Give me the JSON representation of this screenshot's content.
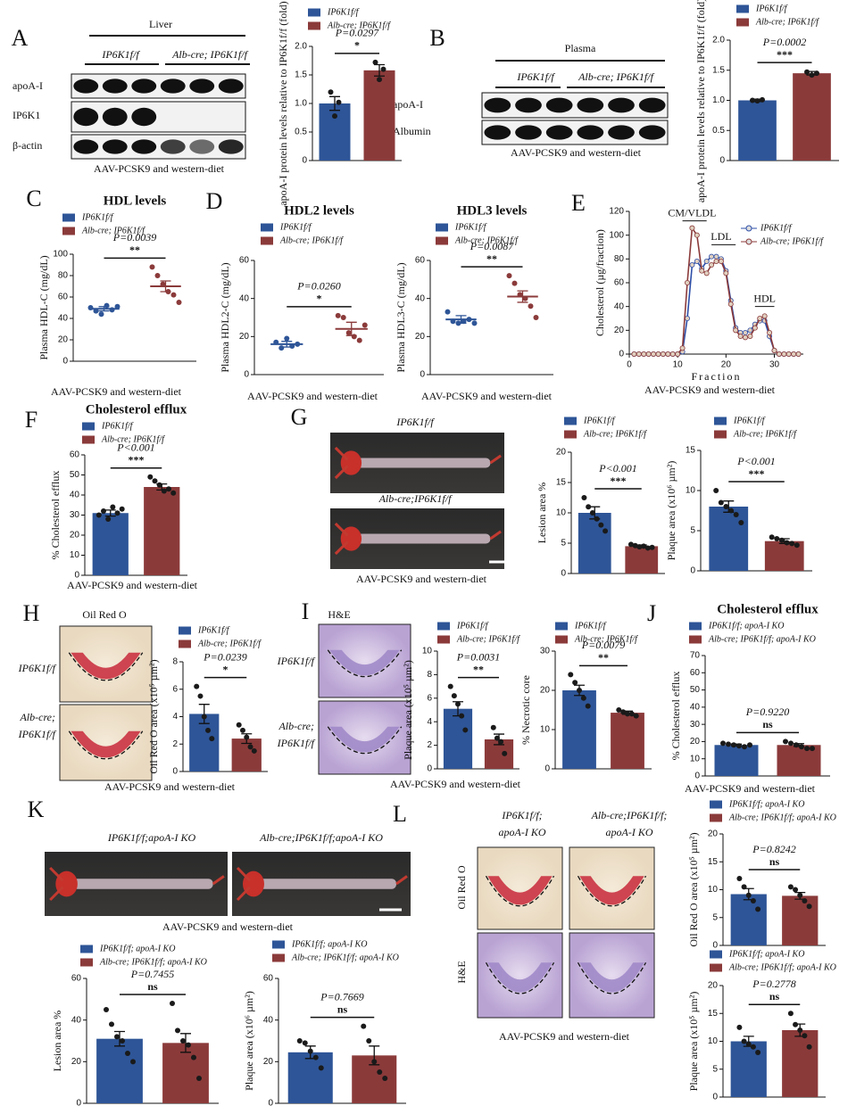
{
  "panels": [
    {
      "letter": "A",
      "header": "Liver",
      "groups": [
        "IP6K1f/f",
        "Alb-cre; IP6K1f/f"
      ],
      "rows": [
        "apoA-I",
        "IP6K1",
        "β-actin"
      ],
      "captions": [
        "AAV-PCSK9 and western-diet"
      ]
    },
    {
      "letter": "B",
      "header": "Plasma",
      "groups": [
        "IP6K1f/f",
        "Alb-cre; IP6K1f/f"
      ],
      "rows": [
        "apoA-I",
        "Albumin"
      ],
      "captions": [
        "AAV-PCSK9 and western-diet"
      ]
    },
    {
      "letter": "C",
      "captions": [
        "AAV-PCSK9 and western-diet"
      ]
    },
    {
      "letter": "D",
      "captions": [
        "AAV-PCSK9 and western-diet",
        "AAV-PCSK9 and western-diet"
      ]
    },
    {
      "letter": "E",
      "captions": [
        "AAV-PCSK9 and western-diet"
      ]
    },
    {
      "letter": "F",
      "captions": [
        "AAV-PCSK9 and western-diet"
      ]
    },
    {
      "letter": "G",
      "labels": [
        [
          "IP6K1f/f"
        ],
        [
          "Alb-cre;IP6K1f/f"
        ]
      ],
      "captions": [
        "AAV-PCSK9 and western-diet"
      ]
    },
    {
      "letter": "H",
      "header": "Oil Red O",
      "labels": [
        [
          "IP6K1f/f"
        ],
        [
          "Alb-cre;",
          "IP6K1f/f"
        ]
      ],
      "captions": [
        "AAV-PCSK9 and western-diet"
      ]
    },
    {
      "letter": "I",
      "header": "H&E",
      "labels": [
        [
          "IP6K1f/f"
        ],
        [
          "Alb-cre;",
          "IP6K1f/f"
        ]
      ],
      "captions": [
        "AAV-PCSK9 and western-diet"
      ]
    },
    {
      "letter": "J",
      "captions": [
        "AAV-PCSK9 and western-diet"
      ]
    },
    {
      "letter": "K",
      "labels": [
        [
          "IP6K1f/f;apoA-I KO"
        ],
        [
          "Alb-cre;IP6K1f/f;apoA-I KO"
        ]
      ],
      "captions": [
        "AAV-PCSK9 and western-diet"
      ]
    },
    {
      "letter": "L",
      "labels": [
        [
          "IP6K1f/f;",
          "apoA-I KO"
        ],
        [
          "Alb-cre;IP6K1f/f;",
          "apoA-I KO"
        ]
      ],
      "rows": [
        "Oil Red O",
        "H&E"
      ],
      "captions": [
        "AAV-PCSK9 and western-diet"
      ]
    }
  ],
  "chart_data": [
    {
      "type": "bar",
      "ylabel": "apoA-I protein levels relative to IP6K1f/f (fold)",
      "ylim": [
        0,
        2
      ],
      "yticks": [
        0,
        0.5,
        {
          "value": 1,
          "label": "1.0"
        },
        1.5,
        {
          "value": 2,
          "label": "2.0"
        }
      ],
      "p_label": "P=0.0297",
      "significance": "*",
      "series": [
        {
          "name": "IP6K1f/f",
          "color": "#2e5597",
          "values": [
            1.0
          ],
          "errors": [
            0.12
          ],
          "points": [
            1.2,
            0.78,
            1.02
          ]
        },
        {
          "name": "Alb-cre; IP6K1f/f",
          "color": "#8b3a3a",
          "values": [
            1.58
          ],
          "errors": [
            0.1
          ],
          "points": [
            1.72,
            1.42,
            1.6
          ]
        }
      ]
    },
    {
      "type": "bar",
      "ylabel": "apoA-I protein levels relative to IP6K1f/f (fold)",
      "ylim": [
        0,
        2
      ],
      "yticks": [
        0,
        0.5,
        {
          "value": 1,
          "label": "1.0"
        },
        1.5,
        {
          "value": 2,
          "label": "2.0"
        }
      ],
      "p_label": "P=0.0002",
      "significance": "***",
      "series": [
        {
          "name": "IP6K1f/f",
          "color": "#2e5597",
          "values": [
            1.0
          ],
          "errors": [
            0.02
          ],
          "points": [
            1.0,
            0.99,
            1.01
          ]
        },
        {
          "name": "Alb-cre; IP6K1f/f",
          "color": "#8b3a3a",
          "values": [
            1.45
          ],
          "errors": [
            0.03
          ],
          "points": [
            1.47,
            1.42,
            1.45
          ]
        }
      ]
    },
    {
      "type": "scatter",
      "title": "HDL levels",
      "ylabel": "Plasma HDL-C (mg/dL)",
      "ylim": [
        0,
        100
      ],
      "yticks": [
        0,
        20,
        40,
        60,
        80,
        100
      ],
      "p_label": "P=0.0039",
      "significance": "**",
      "series": [
        {
          "name": "IP6K1f/f",
          "color": "#2e5597",
          "values": [
            49
          ],
          "errors": [
            2
          ],
          "points": [
            50,
            47,
            44,
            52,
            48,
            51
          ]
        },
        {
          "name": "Alb-cre; IP6K1f/f",
          "color": "#8b3a3a",
          "values": [
            70
          ],
          "errors": [
            5
          ],
          "points": [
            88,
            80,
            72,
            65,
            62,
            55
          ]
        }
      ]
    },
    {
      "type": "scatter",
      "title": "HDL2 levels",
      "ylabel": "Plasma HDL2-C (mg/dL)",
      "ylim": [
        0,
        60
      ],
      "yticks": [
        0,
        20,
        40,
        60
      ],
      "p_label": "P=0.0260",
      "significance": "*",
      "series": [
        {
          "name": "IP6K1f/f",
          "color": "#2e5597",
          "values": [
            16
          ],
          "errors": [
            1.5
          ],
          "points": [
            17,
            14,
            19,
            15,
            16
          ]
        },
        {
          "name": "Alb-cre; IP6K1f/f",
          "color": "#8b3a3a",
          "values": [
            24
          ],
          "errors": [
            3.5
          ],
          "points": [
            31,
            30,
            22,
            20,
            18,
            26
          ]
        }
      ]
    },
    {
      "type": "scatter",
      "title": "HDL3 levels",
      "ylabel": "Plasma HDL3-C (mg/dL)",
      "ylim": [
        0,
        60
      ],
      "yticks": [
        0,
        20,
        40,
        60
      ],
      "p_label": "P=0.0087",
      "significance": "**",
      "series": [
        {
          "name": "IP6K1f/f",
          "color": "#2e5597",
          "values": [
            29
          ],
          "errors": [
            2
          ],
          "points": [
            33,
            28,
            27,
            28,
            29,
            27
          ]
        },
        {
          "name": "Alb-cre; IP6K1f/f",
          "color": "#8b3a3a",
          "values": [
            41
          ],
          "errors": [
            3
          ],
          "points": [
            52,
            48,
            42,
            40,
            36,
            30
          ]
        }
      ]
    },
    {
      "type": "line",
      "ylabel": "Cholesterol (µg/fraction)",
      "xlabel": "Fraction",
      "xlim": [
        0,
        36
      ],
      "xticks": [
        0,
        10,
        20,
        30
      ],
      "ylim": [
        0,
        120
      ],
      "yticks": [
        0,
        20,
        40,
        60,
        80,
        100,
        120
      ],
      "annotations": [
        "CM/VLDL",
        "LDL",
        "HDL"
      ],
      "x": [
        1,
        2,
        3,
        4,
        5,
        6,
        7,
        8,
        9,
        10,
        11,
        12,
        13,
        14,
        15,
        16,
        17,
        18,
        19,
        20,
        21,
        22,
        23,
        24,
        25,
        26,
        27,
        28,
        29,
        30,
        31,
        32,
        33,
        34,
        35
      ],
      "series": [
        {
          "name": "IP6K1f/f",
          "color": "#2e4fa8",
          "values": [
            0,
            0,
            0,
            0,
            0,
            0,
            0,
            0,
            0,
            0,
            2,
            30,
            75,
            78,
            72,
            78,
            82,
            82,
            80,
            70,
            45,
            22,
            18,
            18,
            20,
            25,
            28,
            28,
            15,
            3,
            0,
            0,
            0,
            0,
            0
          ]
        },
        {
          "name": "Alb-cre; IP6K1f/f",
          "color": "#8b3a3a",
          "values": [
            0,
            0,
            0,
            0,
            0,
            0,
            0,
            0,
            0,
            0,
            5,
            60,
            106,
            100,
            70,
            68,
            75,
            78,
            78,
            68,
            42,
            20,
            15,
            14,
            15,
            22,
            30,
            32,
            18,
            3,
            0,
            0,
            0,
            0,
            0
          ]
        }
      ]
    },
    {
      "type": "bar",
      "title": "Cholesterol efflux",
      "ylabel": "% Cholesterol efflux",
      "ylim": [
        0,
        60
      ],
      "yticks": [
        0,
        10,
        20,
        30,
        40,
        50,
        60
      ],
      "p_label": "P<0.001",
      "significance": "***",
      "series": [
        {
          "name": "IP6K1f/f",
          "color": "#2e5597",
          "values": [
            31
          ],
          "errors": [
            1.5
          ],
          "points": [
            30,
            32,
            28,
            34,
            31,
            33
          ]
        },
        {
          "name": "Alb-cre; IP6K1f/f",
          "color": "#8b3a3a",
          "values": [
            44
          ],
          "errors": [
            1.5
          ],
          "points": [
            49,
            47,
            45,
            42,
            43,
            41
          ]
        }
      ]
    },
    {
      "type": "bar",
      "ylabel": "Lesion area %",
      "ylim": [
        0,
        20
      ],
      "yticks": [
        0,
        5,
        10,
        15,
        20
      ],
      "p_label": "P<0.001",
      "significance": "***",
      "series": [
        {
          "name": "IP6K1f/f",
          "color": "#2e5597",
          "values": [
            10
          ],
          "errors": [
            1
          ],
          "points": [
            12.5,
            11,
            10,
            9,
            8,
            7
          ]
        },
        {
          "name": "Alb-cre; IP6K1f/f",
          "color": "#8b3a3a",
          "values": [
            4.5
          ],
          "errors": [
            0.2
          ],
          "points": [
            4.8,
            4.6,
            4.4,
            4.5,
            4.2,
            4.3
          ]
        }
      ]
    },
    {
      "type": "bar",
      "ylabel": "Plaque area (x10⁶ µm²)",
      "ylim": [
        0,
        15
      ],
      "yticks": [
        0,
        5,
        10,
        15
      ],
      "p_label": "P<0.001",
      "significance": "***",
      "series": [
        {
          "name": "IP6K1f/f",
          "color": "#2e5597",
          "values": [
            8
          ],
          "errors": [
            0.7
          ],
          "points": [
            10,
            8.5,
            8,
            7.5,
            7,
            6
          ]
        },
        {
          "name": "Alb-cre; IP6K1f/f",
          "color": "#8b3a3a",
          "values": [
            3.7
          ],
          "errors": [
            0.3
          ],
          "points": [
            4.2,
            4,
            3.8,
            3.5,
            3.4,
            3.2
          ]
        }
      ]
    },
    {
      "type": "bar",
      "ylabel": "Oil Red O area (x10⁵ µm²)",
      "ylim": [
        0,
        8
      ],
      "yticks": [
        0,
        2,
        4,
        6,
        8
      ],
      "p_label": "P=0.0239",
      "significance": "*",
      "series": [
        {
          "name": "IP6K1f/f",
          "color": "#2e5597",
          "values": [
            4.2
          ],
          "errors": [
            0.7
          ],
          "points": [
            6.2,
            5.5,
            4,
            3,
            2.4
          ]
        },
        {
          "name": "Alb-cre; IP6K1f/f",
          "color": "#8b3a3a",
          "values": [
            2.4
          ],
          "errors": [
            0.35
          ],
          "points": [
            3.4,
            3,
            2.5,
            1.8,
            1.5
          ]
        }
      ]
    },
    {
      "type": "bar",
      "ylabel": "Plaque area (x10⁵ µm²)",
      "ylim": [
        0,
        10
      ],
      "yticks": [
        0,
        2,
        4,
        6,
        8,
        10
      ],
      "p_label": "P=0.0031",
      "significance": "**",
      "series": [
        {
          "name": "IP6K1f/f",
          "color": "#2e5597",
          "values": [
            5.1
          ],
          "errors": [
            0.6
          ],
          "points": [
            7,
            6.2,
            5.5,
            4.5,
            3.3
          ]
        },
        {
          "name": "Alb-cre; IP6K1f/f",
          "color": "#8b3a3a",
          "values": [
            2.5
          ],
          "errors": [
            0.45
          ],
          "points": [
            3.5,
            2.6,
            2.3,
            1.3
          ]
        }
      ]
    },
    {
      "type": "bar",
      "ylabel": "% Necrotic core",
      "ylim": [
        0,
        30
      ],
      "yticks": [
        0,
        10,
        20,
        30
      ],
      "p_label": "P=0.0079",
      "significance": "**",
      "series": [
        {
          "name": "IP6K1f/f",
          "color": "#2e5597",
          "values": [
            20
          ],
          "errors": [
            1.3
          ],
          "points": [
            24,
            22,
            20,
            18,
            16
          ]
        },
        {
          "name": "Alb-cre; IP6K1f/f",
          "color": "#8b3a3a",
          "values": [
            14.3
          ],
          "errors": [
            0.4
          ],
          "points": [
            15,
            14.5,
            14,
            14,
            13.5
          ]
        }
      ]
    },
    {
      "type": "bar",
      "title": "Cholesterol efflux",
      "ylabel": "% Cholesterol efflux",
      "ylim": [
        0,
        70
      ],
      "yticks": [
        0,
        10,
        20,
        30,
        40,
        50,
        60,
        70
      ],
      "p_label": "P=0.9220",
      "significance": "ns",
      "series": [
        {
          "name": "IP6K1f/f; apoA-I KO",
          "color": "#2e5597",
          "values": [
            18
          ],
          "errors": [
            0.5
          ],
          "points": [
            19,
            18.5,
            18,
            17.5,
            17,
            18
          ]
        },
        {
          "name": "Alb-cre; IP6K1f/f; apoA-I KO",
          "color": "#8b3a3a",
          "values": [
            18
          ],
          "errors": [
            0.8
          ],
          "points": [
            20,
            19,
            18,
            17,
            16,
            16
          ]
        }
      ]
    },
    {
      "type": "bar",
      "ylabel": "Lesion area %",
      "ylim": [
        0,
        60
      ],
      "yticks": [
        0,
        20,
        40,
        60
      ],
      "p_label": "P=0.7455",
      "significance": "ns",
      "series": [
        {
          "name": "IP6K1f/f; apoA-I KO",
          "color": "#2e5597",
          "values": [
            31
          ],
          "errors": [
            3.5
          ],
          "points": [
            45,
            38,
            32,
            30,
            24,
            20
          ]
        },
        {
          "name": "Alb-cre; IP6K1f/f; apoA-I KO",
          "color": "#8b3a3a",
          "values": [
            29
          ],
          "errors": [
            4.5
          ],
          "points": [
            48,
            35,
            30,
            28,
            22,
            12
          ]
        }
      ]
    },
    {
      "type": "bar",
      "ylabel": "Plaque area (x10⁶ µm²)",
      "ylim": [
        0,
        60
      ],
      "yticks": [
        0,
        20,
        40,
        60
      ],
      "p_label": "P=0.7669",
      "significance": "ns",
      "series": [
        {
          "name": "IP6K1f/f; apoA-I KO",
          "color": "#2e5597",
          "values": [
            24.5
          ],
          "errors": [
            3
          ],
          "points": [
            30,
            29,
            25,
            22,
            17
          ]
        },
        {
          "name": "Alb-cre; IP6K1f/f; apoA-I KO",
          "color": "#8b3a3a",
          "values": [
            23
          ],
          "errors": [
            4.5
          ],
          "points": [
            37,
            30,
            20,
            15,
            12
          ]
        }
      ]
    },
    {
      "type": "bar",
      "ylabel": "Oil Red O area (x10⁵ µm²)",
      "ylim": [
        0,
        20
      ],
      "yticks": [
        0,
        5,
        10,
        15,
        20
      ],
      "p_label": "P=0.8242",
      "significance": "ns",
      "series": [
        {
          "name": "IP6K1f/f; apoA-I KO",
          "color": "#2e5597",
          "values": [
            9.2
          ],
          "errors": [
            1
          ],
          "points": [
            12,
            10.5,
            9,
            8,
            6.5
          ]
        },
        {
          "name": "Alb-cre; IP6K1f/f; apoA-I KO",
          "color": "#8b3a3a",
          "values": [
            8.9
          ],
          "errors": [
            0.6
          ],
          "points": [
            10.5,
            10,
            9,
            8,
            7
          ]
        }
      ]
    },
    {
      "type": "bar",
      "ylabel": "Plaque area (x10⁵ µm²)",
      "ylim": [
        0,
        20
      ],
      "yticks": [
        0,
        5,
        10,
        15,
        20
      ],
      "p_label": "P=0.2778",
      "significance": "ns",
      "series": [
        {
          "name": "IP6K1f/f; apoA-I KO",
          "color": "#2e5597",
          "values": [
            10
          ],
          "errors": [
            0.9
          ],
          "points": [
            12.5,
            10,
            9.5,
            9,
            8
          ]
        },
        {
          "name": "Alb-cre; IP6K1f/f; apoA-I KO",
          "color": "#8b3a3a",
          "values": [
            12
          ],
          "errors": [
            1.1
          ],
          "points": [
            15,
            13,
            12,
            11,
            9
          ]
        }
      ]
    }
  ]
}
